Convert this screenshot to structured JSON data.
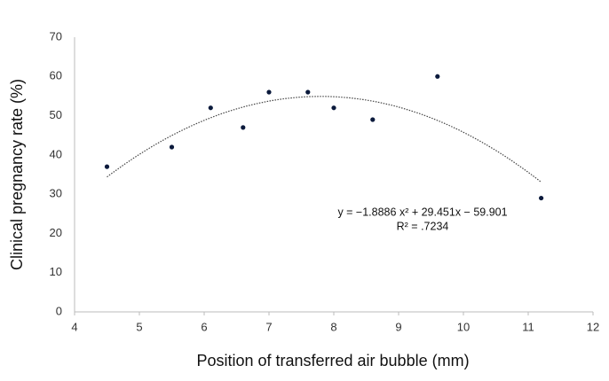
{
  "chart_data": {
    "type": "scatter",
    "x_label": "Position of transferred air bubble (mm)",
    "y_label": "Clinical pregnancy rate (%)",
    "x": [
      4.5,
      5.5,
      6.1,
      6.6,
      7.0,
      7.6,
      8.0,
      8.6,
      9.6,
      11.2
    ],
    "values": [
      37,
      42,
      52,
      47,
      56,
      56,
      52,
      49,
      60,
      29
    ],
    "color": "#0b1a3c",
    "xlim": [
      4,
      12
    ],
    "xticks": [
      4,
      5,
      6,
      7,
      8,
      9,
      10,
      11,
      12
    ],
    "ylim": [
      0,
      70
    ],
    "yticks": [
      0,
      10,
      20,
      30,
      40,
      50,
      60,
      70
    ],
    "trendline": "polynomial",
    "annotations": [
      "y = −1.8886 x² + 29.451x − 59.901",
      "R² = .7234"
    ],
    "grid": false
  }
}
